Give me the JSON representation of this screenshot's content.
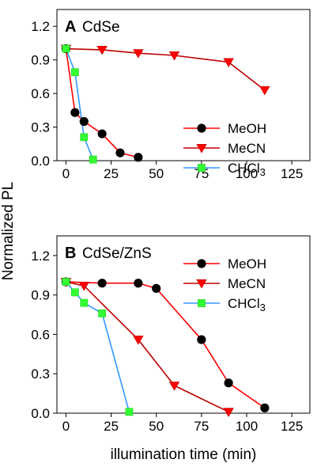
{
  "figure": {
    "ylabel": "Normalized PL",
    "xlabel": "illumination time (min)"
  },
  "chart_data": [
    {
      "type": "line",
      "panel_letter": "A",
      "title": "CdSe",
      "xlim": [
        -5,
        135
      ],
      "ylim": [
        0,
        1.35
      ],
      "xticks": [
        "0",
        "25",
        "50",
        "75",
        "100",
        "125"
      ],
      "yticks": [
        "0.0",
        "0.3",
        "0.6",
        "0.9",
        "1.2"
      ],
      "legend_position": "lower-right",
      "series": [
        {
          "name": "MeOH",
          "color": "#ff0000",
          "marker": "circle",
          "marker_color": "#000000",
          "x": [
            0,
            5,
            10,
            20,
            30,
            40
          ],
          "y": [
            1.0,
            0.43,
            0.35,
            0.24,
            0.07,
            0.03
          ]
        },
        {
          "name": "MeCN",
          "color": "#c00000",
          "marker": "triangle-down",
          "marker_color": "#ff0000",
          "x": [
            0,
            20,
            40,
            60,
            90,
            110
          ],
          "y": [
            1.0,
            0.99,
            0.96,
            0.94,
            0.88,
            0.63
          ]
        },
        {
          "name": "CHCl3",
          "color": "#3399ff",
          "marker": "square",
          "marker_color": "#33ff33",
          "x": [
            0,
            5,
            10,
            15
          ],
          "y": [
            1.0,
            0.79,
            0.21,
            0.01
          ]
        }
      ]
    },
    {
      "type": "line",
      "panel_letter": "B",
      "title": "CdSe/ZnS",
      "xlim": [
        -5,
        135
      ],
      "ylim": [
        0,
        1.35
      ],
      "xticks": [
        "0",
        "25",
        "50",
        "75",
        "100",
        "125"
      ],
      "yticks": [
        "0.0",
        "0.3",
        "0.6",
        "0.9",
        "1.2"
      ],
      "legend_position": "top-right",
      "series": [
        {
          "name": "MeOH",
          "color": "#ff0000",
          "marker": "circle",
          "marker_color": "#000000",
          "x": [
            0,
            20,
            40,
            50,
            75,
            90,
            110
          ],
          "y": [
            1.0,
            0.99,
            0.99,
            0.95,
            0.56,
            0.23,
            0.04
          ]
        },
        {
          "name": "MeCN",
          "color": "#c00000",
          "marker": "triangle-down",
          "marker_color": "#ff0000",
          "x": [
            0,
            10,
            40,
            60,
            90
          ],
          "y": [
            1.0,
            0.97,
            0.56,
            0.21,
            0.01
          ]
        },
        {
          "name": "CHCl3",
          "color": "#3399ff",
          "marker": "square",
          "marker_color": "#33ff33",
          "x": [
            0,
            5,
            10,
            20,
            35
          ],
          "y": [
            1.0,
            0.92,
            0.84,
            0.76,
            0.01
          ]
        }
      ]
    }
  ]
}
